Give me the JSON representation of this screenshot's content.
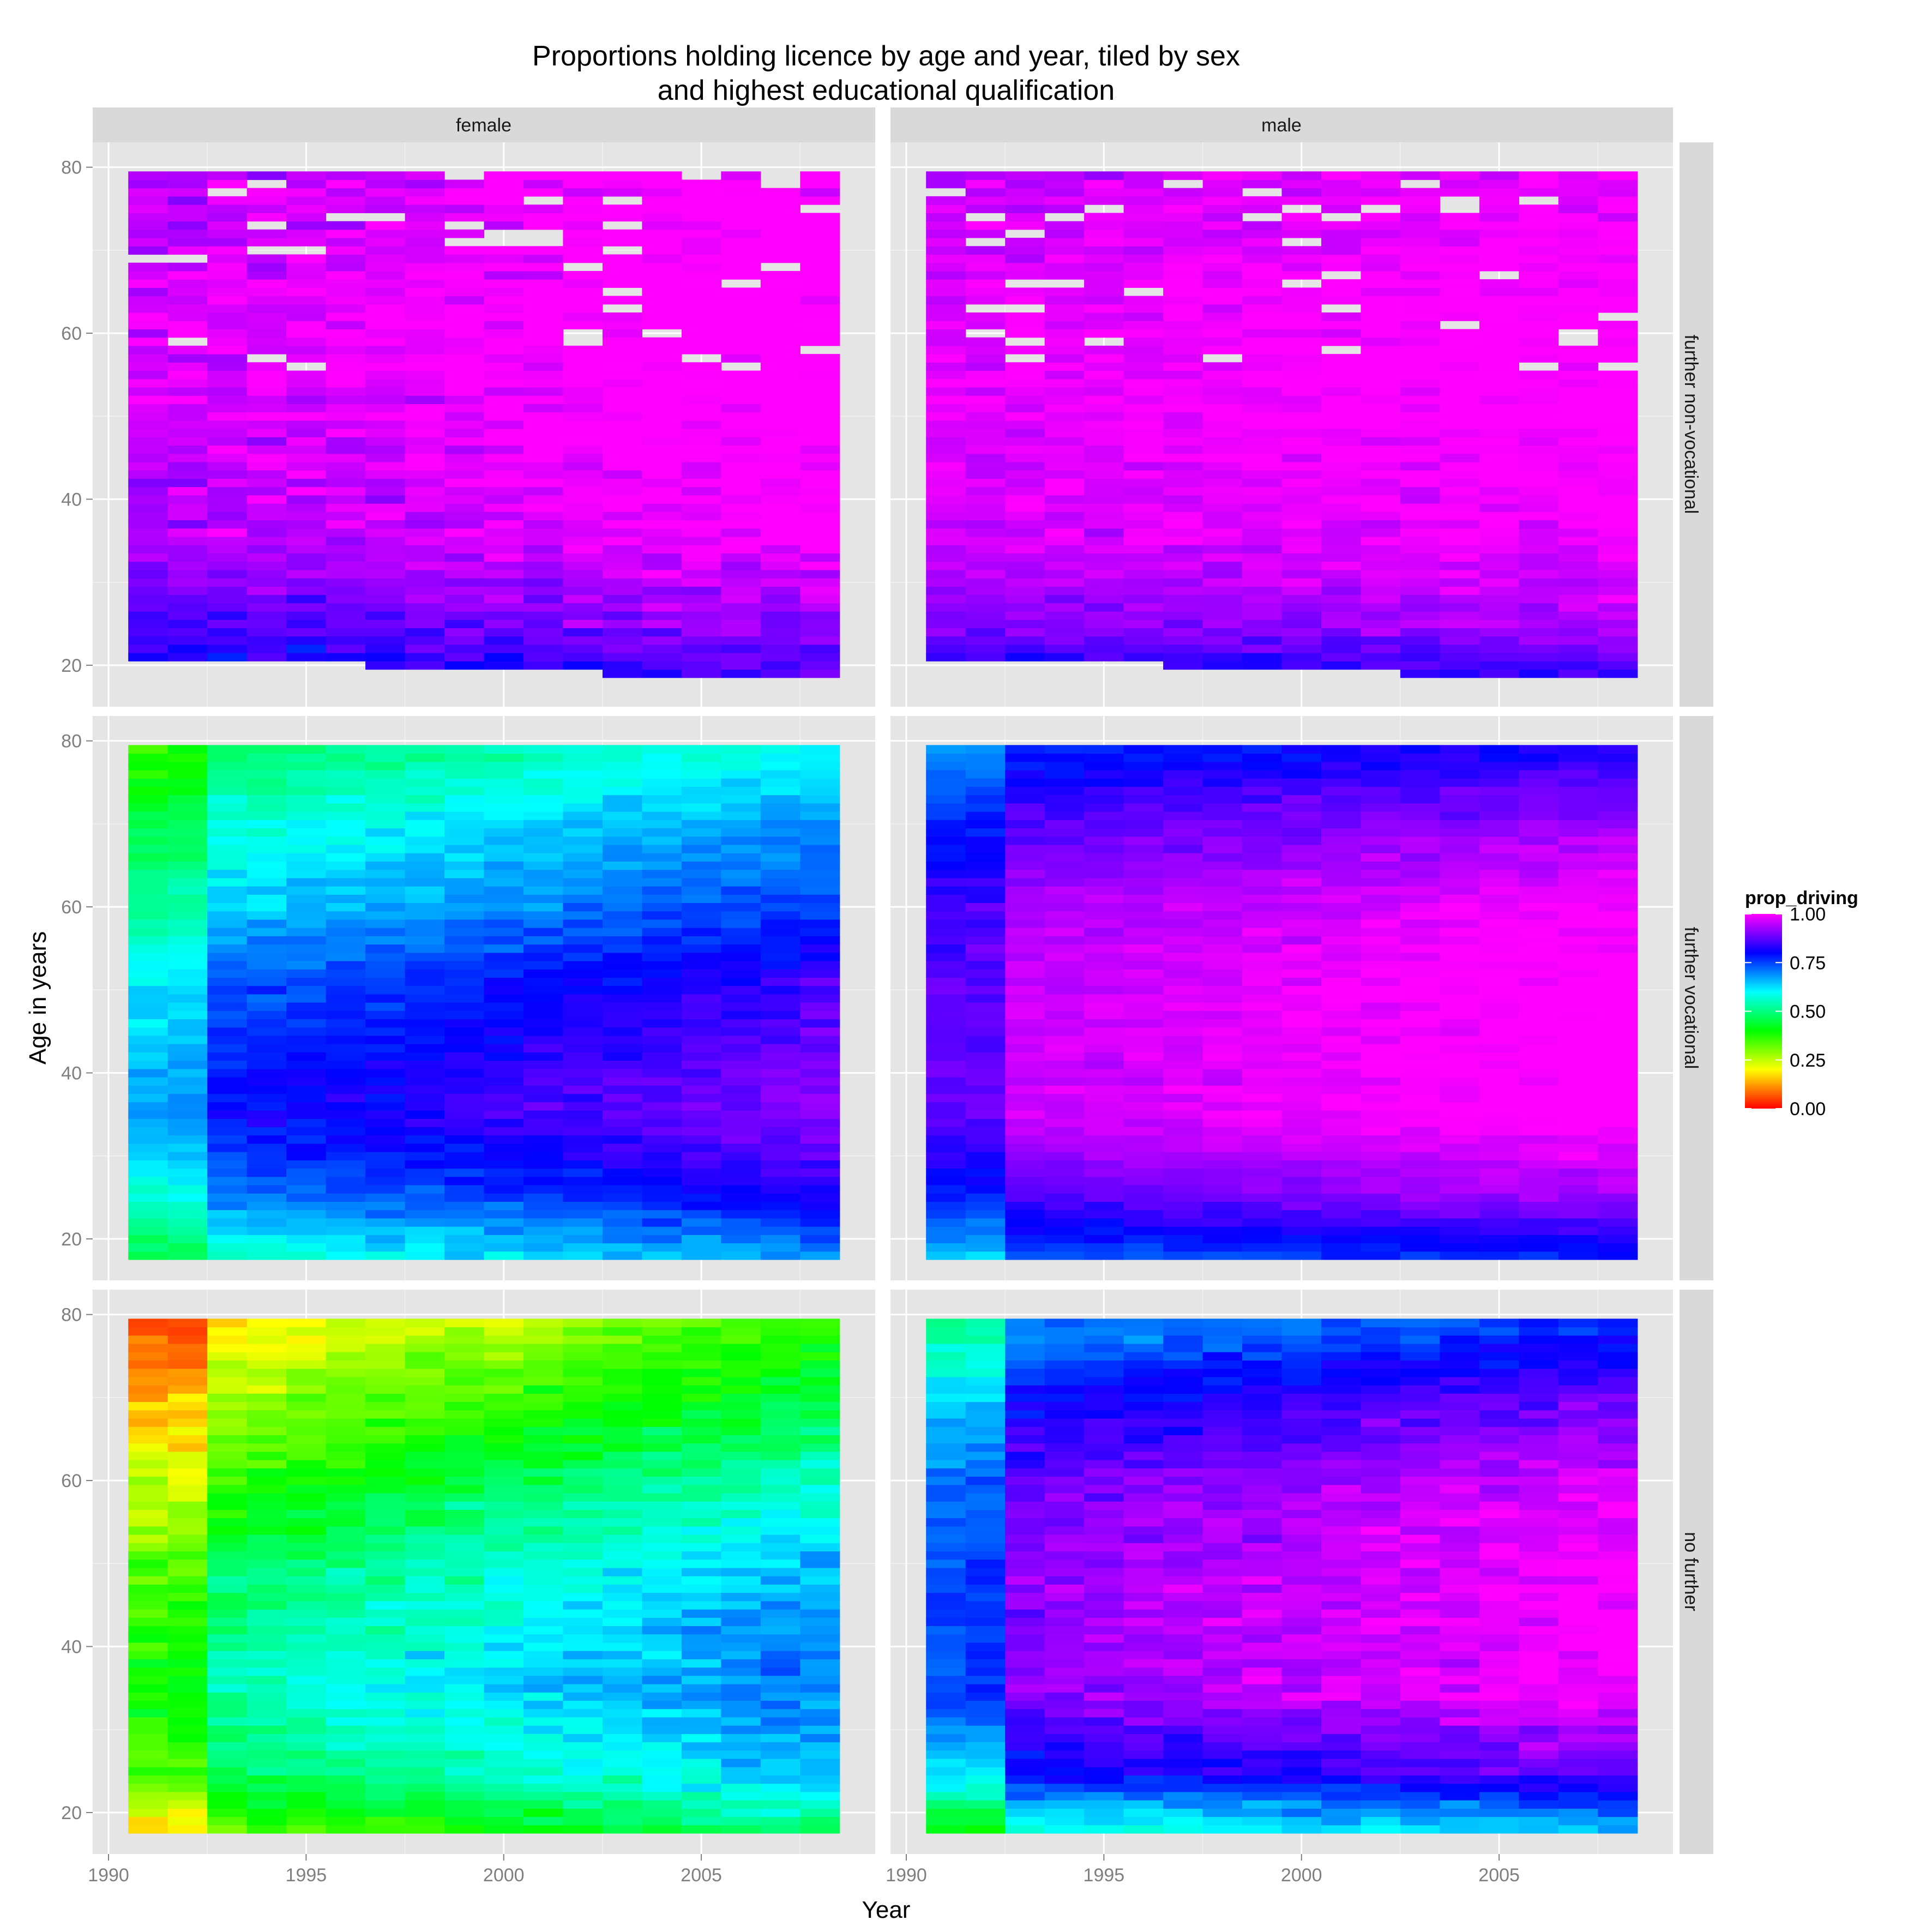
{
  "chart_data": {
    "type": "heatmap",
    "title_lines": [
      "Proportions holding licence by age and year, tiled by sex",
      "and highest educational qualification"
    ],
    "xlabel": "Year",
    "ylabel": "Age in years",
    "x_ticks": [
      1990,
      1995,
      2000,
      2005
    ],
    "y_ticks": [
      20,
      40,
      60,
      80
    ],
    "xlim": [
      1989.6,
      2009.4
    ],
    "ylim": [
      15,
      83
    ],
    "columns": [
      "female",
      "male"
    ],
    "rows": [
      "further non-vocational",
      "further vocational",
      "no further"
    ],
    "years": [
      1991,
      1992,
      1993,
      1994,
      1995,
      1996,
      1997,
      1998,
      1999,
      2000,
      2001,
      2002,
      2003,
      2004,
      2005,
      2006,
      2007,
      2008
    ],
    "legend": {
      "title": "prop_driving",
      "labels": [
        "1.00",
        "0.75",
        "0.50",
        "0.25",
        "0.00"
      ],
      "values": [
        1.0,
        0.75,
        0.5,
        0.25,
        0.0
      ],
      "range": [
        0,
        1
      ]
    },
    "colorscale": [
      "#ff0000",
      "#ffff00",
      "#00ff00",
      "#00ffff",
      "#0000ff",
      "#ff00ff"
    ],
    "panels": [
      {
        "sex": "female",
        "education": "further non-vocational",
        "profile": [
          [
            18,
            0.78
          ],
          [
            25,
            0.85
          ],
          [
            35,
            0.93
          ],
          [
            50,
            0.96
          ],
          [
            60,
            0.97
          ],
          [
            70,
            0.96
          ],
          [
            80,
            0.95
          ]
        ],
        "year_trend": 0.004,
        "noise": 0.07,
        "age_min_1991": 21,
        "age_max": 79,
        "missing_frac": 0.06
      },
      {
        "sex": "male",
        "education": "further non-vocational",
        "profile": [
          [
            18,
            0.8
          ],
          [
            25,
            0.9
          ],
          [
            35,
            0.96
          ],
          [
            50,
            0.98
          ],
          [
            60,
            0.98
          ],
          [
            70,
            0.97
          ],
          [
            80,
            0.95
          ]
        ],
        "year_trend": 0.002,
        "noise": 0.05,
        "age_min_1991": 21,
        "age_max": 79,
        "missing_frac": 0.04
      },
      {
        "sex": "female",
        "education": "further vocational",
        "profile": [
          [
            18,
            0.55
          ],
          [
            25,
            0.68
          ],
          [
            35,
            0.78
          ],
          [
            50,
            0.72
          ],
          [
            60,
            0.62
          ],
          [
            70,
            0.55
          ],
          [
            80,
            0.45
          ]
        ],
        "year_trend": 0.008,
        "noise": 0.05,
        "age_min_1991": 18,
        "age_max": 79,
        "missing_frac": 0.0
      },
      {
        "sex": "male",
        "education": "further vocational",
        "profile": [
          [
            18,
            0.72
          ],
          [
            25,
            0.86
          ],
          [
            35,
            0.95
          ],
          [
            50,
            0.95
          ],
          [
            60,
            0.93
          ],
          [
            70,
            0.86
          ],
          [
            80,
            0.75
          ]
        ],
        "year_trend": 0.004,
        "noise": 0.04,
        "age_min_1991": 18,
        "age_max": 79,
        "missing_frac": 0.0
      },
      {
        "sex": "female",
        "education": "no further",
        "profile": [
          [
            18,
            0.3
          ],
          [
            25,
            0.45
          ],
          [
            35,
            0.52
          ],
          [
            50,
            0.45
          ],
          [
            60,
            0.35
          ],
          [
            70,
            0.25
          ],
          [
            80,
            0.15
          ]
        ],
        "year_trend": 0.012,
        "noise": 0.07,
        "age_min_1991": 18,
        "age_max": 79,
        "missing_frac": 0.0
      },
      {
        "sex": "male",
        "education": "no further",
        "profile": [
          [
            18,
            0.55
          ],
          [
            25,
            0.78
          ],
          [
            35,
            0.9
          ],
          [
            50,
            0.9
          ],
          [
            60,
            0.87
          ],
          [
            70,
            0.78
          ],
          [
            80,
            0.65
          ]
        ],
        "year_trend": 0.006,
        "noise": 0.06,
        "age_min_1991": 18,
        "age_max": 79,
        "missing_frac": 0.0
      }
    ]
  }
}
